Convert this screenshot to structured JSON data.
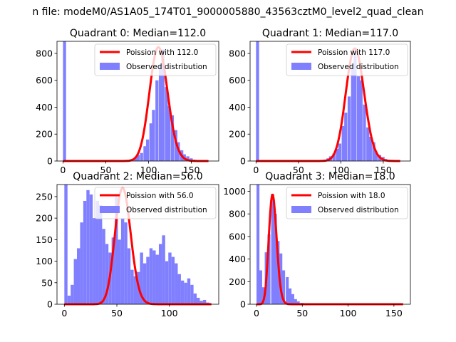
{
  "suptitle": "n file: modeM0/AS1A05_174T01_9000005880_43563cztM0_level2_quad_clean",
  "colors": {
    "hist": "#8080ff",
    "fit": "#ff0000",
    "axis": "#000000"
  },
  "chart_data": [
    {
      "type": "bar",
      "title": "Quadrant 0: Median=112.0",
      "legend": [
        "Poission with 112.0",
        "Observed distribution"
      ],
      "legend_position": "top-right",
      "median": 112.0,
      "xlim": [
        -7,
        182
      ],
      "ylim": [
        0,
        890
      ],
      "xticks": [
        0,
        50,
        100,
        150
      ],
      "yticks": [
        0,
        200,
        400,
        600,
        800
      ],
      "bin_width": 3.6,
      "bins": [
        [
          0,
          890
        ],
        [
          72,
          5
        ],
        [
          76,
          8
        ],
        [
          79,
          15
        ],
        [
          83,
          25
        ],
        [
          86,
          45
        ],
        [
          90,
          60
        ],
        [
          94,
          110
        ],
        [
          97,
          160
        ],
        [
          101,
          280
        ],
        [
          104,
          380
        ],
        [
          108,
          600
        ],
        [
          112,
          720
        ],
        [
          115,
          830
        ],
        [
          119,
          550
        ],
        [
          122,
          410
        ],
        [
          126,
          340
        ],
        [
          130,
          230
        ],
        [
          133,
          140
        ],
        [
          137,
          80
        ],
        [
          140,
          50
        ],
        [
          144,
          35
        ],
        [
          148,
          20
        ],
        [
          151,
          10
        ],
        [
          155,
          5
        ]
      ],
      "fit_x_range": [
        0,
        170
      ]
    },
    {
      "type": "bar",
      "title": "Quadrant 1: Median=117.0",
      "legend": [
        "Poission with 117.0",
        "Observed distribution"
      ],
      "legend_position": "top-right",
      "median": 117.0,
      "xlim": [
        -7,
        182
      ],
      "ylim": [
        0,
        890
      ],
      "xticks": [
        0,
        50,
        100,
        150
      ],
      "yticks": [
        0,
        200,
        400,
        600,
        800
      ],
      "bin_width": 3.6,
      "bins": [
        [
          0,
          890
        ],
        [
          75,
          5
        ],
        [
          79,
          10
        ],
        [
          83,
          20
        ],
        [
          86,
          35
        ],
        [
          90,
          55
        ],
        [
          94,
          90
        ],
        [
          97,
          130
        ],
        [
          101,
          260
        ],
        [
          104,
          360
        ],
        [
          108,
          480
        ],
        [
          112,
          720
        ],
        [
          115,
          820
        ],
        [
          119,
          630
        ],
        [
          122,
          600
        ],
        [
          126,
          420
        ],
        [
          130,
          250
        ],
        [
          133,
          180
        ],
        [
          137,
          140
        ],
        [
          140,
          60
        ],
        [
          144,
          45
        ],
        [
          148,
          30
        ],
        [
          151,
          15
        ],
        [
          155,
          8
        ],
        [
          158,
          4
        ]
      ],
      "fit_x_range": [
        0,
        170
      ]
    },
    {
      "type": "bar",
      "title": "Quadrant 2: Median=56.0",
      "legend": [
        "Poission with 56.0",
        "Observed distribution"
      ],
      "legend_position": "top-right",
      "median": 56.0,
      "xlim": [
        -7,
        147
      ],
      "ylim": [
        0,
        278
      ],
      "xticks": [
        0,
        50,
        100
      ],
      "yticks": [
        0,
        50,
        100,
        150,
        200,
        250
      ],
      "bin_width": 3.0,
      "bins": [
        [
          0,
          278
        ],
        [
          3,
          20
        ],
        [
          6,
          45
        ],
        [
          9,
          105
        ],
        [
          12,
          130
        ],
        [
          15,
          190
        ],
        [
          18,
          240
        ],
        [
          21,
          265
        ],
        [
          24,
          255
        ],
        [
          27,
          200
        ],
        [
          30,
          240
        ],
        [
          33,
          230
        ],
        [
          36,
          175
        ],
        [
          39,
          140
        ],
        [
          42,
          120
        ],
        [
          45,
          155
        ],
        [
          48,
          250
        ],
        [
          51,
          150
        ],
        [
          54,
          200
        ],
        [
          57,
          190
        ],
        [
          60,
          130
        ],
        [
          63,
          80
        ],
        [
          66,
          65
        ],
        [
          69,
          75
        ],
        [
          72,
          120
        ],
        [
          75,
          95
        ],
        [
          78,
          110
        ],
        [
          81,
          130
        ],
        [
          84,
          125
        ],
        [
          87,
          115
        ],
        [
          90,
          140
        ],
        [
          93,
          160
        ],
        [
          96,
          100
        ],
        [
          99,
          120
        ],
        [
          102,
          110
        ],
        [
          105,
          95
        ],
        [
          108,
          70
        ],
        [
          111,
          55
        ],
        [
          114,
          50
        ],
        [
          117,
          60
        ],
        [
          120,
          45
        ],
        [
          123,
          25
        ],
        [
          126,
          15
        ],
        [
          129,
          8
        ],
        [
          132,
          10
        ],
        [
          135,
          4
        ]
      ],
      "fit_x_range": [
        0,
        140
      ]
    },
    {
      "type": "bar",
      "title": "Quadrant 3: Median=18.0",
      "legend": [
        "Poission with 18.0",
        "Observed distribution"
      ],
      "legend_position": "top-right",
      "median": 18.0,
      "xlim": [
        -7,
        168
      ],
      "ylim": [
        0,
        1060
      ],
      "xticks": [
        0,
        50,
        100,
        150
      ],
      "yticks": [
        0,
        200,
        400,
        600,
        800,
        1000
      ],
      "bin_width": 3.2,
      "bins": [
        [
          0,
          1060
        ],
        [
          3,
          300
        ],
        [
          6,
          150
        ],
        [
          9,
          460
        ],
        [
          12,
          620
        ],
        [
          16,
          950
        ],
        [
          19,
          800
        ],
        [
          22,
          560
        ],
        [
          25,
          450
        ],
        [
          28,
          300
        ],
        [
          32,
          240
        ],
        [
          35,
          140
        ],
        [
          38,
          90
        ],
        [
          41,
          45
        ],
        [
          44,
          25
        ],
        [
          48,
          12
        ],
        [
          51,
          6
        ],
        [
          54,
          3
        ],
        [
          57,
          2
        ]
      ],
      "fit_x_range": [
        0,
        160
      ]
    }
  ]
}
